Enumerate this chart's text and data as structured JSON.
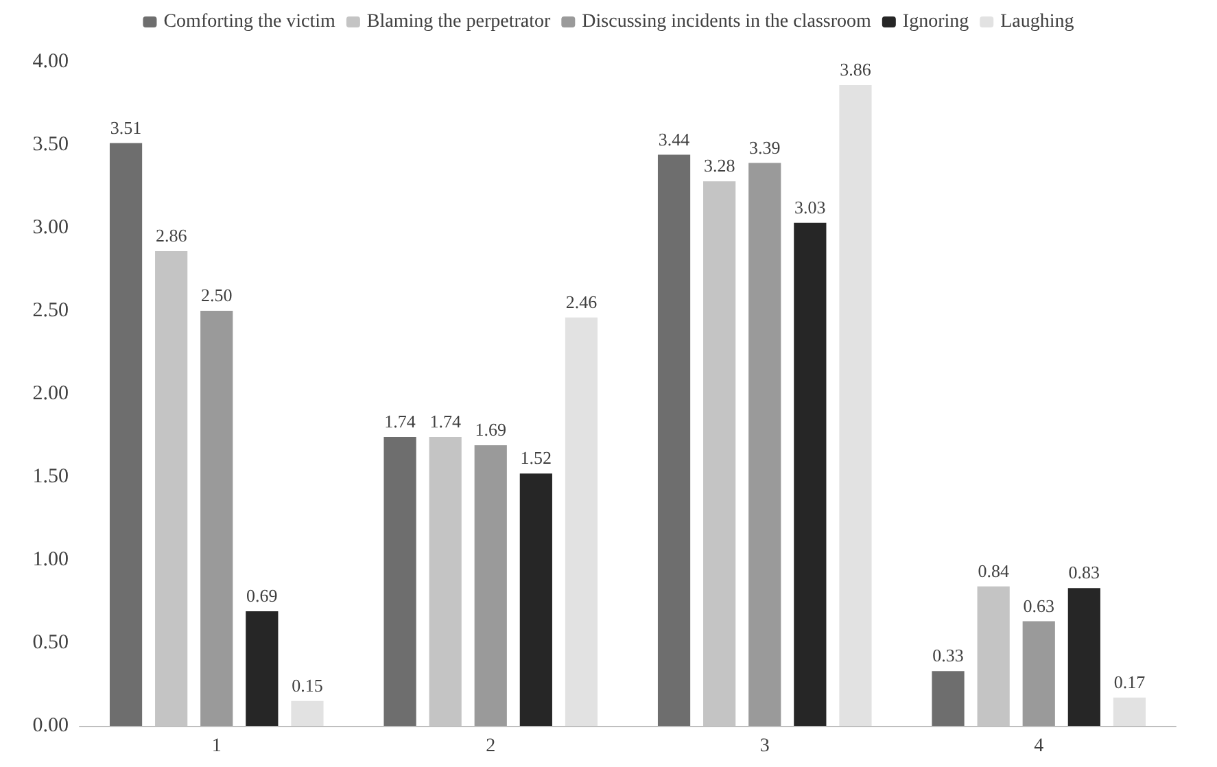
{
  "chart_data": {
    "type": "bar",
    "categories": [
      "1",
      "2",
      "3",
      "4"
    ],
    "series": [
      {
        "name": "Comforting the victim",
        "color": "#6e6e6e",
        "values": [
          3.51,
          1.74,
          3.44,
          0.33
        ],
        "value_labels": [
          "3.51",
          "1.74",
          "3.44",
          "0.33"
        ]
      },
      {
        "name": "Blaming the perpetrator",
        "color": "#c4c4c4",
        "values": [
          2.86,
          1.74,
          3.28,
          0.84
        ],
        "value_labels": [
          "2.86",
          "1.74",
          "3.28",
          "0.84"
        ]
      },
      {
        "name": "Discussing incidents in the classroom",
        "color": "#9a9a9a",
        "values": [
          2.5,
          1.69,
          3.39,
          0.63
        ],
        "value_labels": [
          "2.50",
          "1.69",
          "3.39",
          "0.63"
        ]
      },
      {
        "name": "Ignoring",
        "color": "#262626",
        "values": [
          0.69,
          1.52,
          3.03,
          0.83
        ],
        "value_labels": [
          "0.69",
          "1.52",
          "3.03",
          "0.83"
        ]
      },
      {
        "name": "Laughing",
        "color": "#e2e2e2",
        "values": [
          0.15,
          2.46,
          3.86,
          0.17
        ],
        "value_labels": [
          "0.15",
          "2.46",
          "3.86",
          "0.17"
        ]
      }
    ],
    "ylim": [
      0,
      4
    ],
    "yticks": [
      {
        "value": 0,
        "label": "0.00"
      },
      {
        "value": 0.5,
        "label": "0.50"
      },
      {
        "value": 1,
        "label": "1.00"
      },
      {
        "value": 1.5,
        "label": "1.50"
      },
      {
        "value": 2,
        "label": "2.00"
      },
      {
        "value": 2.5,
        "label": "2.50"
      },
      {
        "value": 3,
        "label": "3.00"
      },
      {
        "value": 3.5,
        "label": "3.50"
      },
      {
        "value": 4,
        "label": "4.00"
      }
    ],
    "grid": false,
    "legend": "top"
  }
}
